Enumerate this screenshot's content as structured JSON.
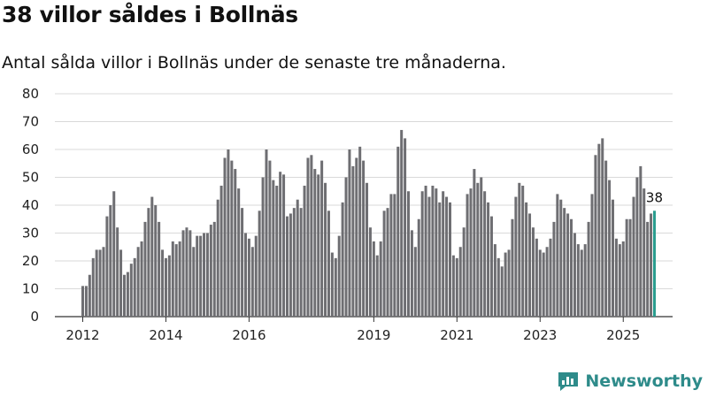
{
  "title": "38 villor såldes i Bollnäs",
  "subtitle": "Antal sålda villor i Bollnäs under de senaste tre månaderna.",
  "brand": {
    "name": "Newsworthy",
    "icon": "newsworthy-logo-icon",
    "color": "#2e8b8a"
  },
  "chart_data": {
    "type": "bar",
    "title": "38 villor såldes i Bollnäs",
    "subtitle": "Antal sålda villor i Bollnäs under de senaste tre månaderna.",
    "xlabel": "",
    "ylabel": "",
    "ylim": [
      0,
      80
    ],
    "yticks": [
      0,
      10,
      20,
      30,
      40,
      50,
      60,
      70,
      80
    ],
    "xtick_labels": [
      {
        "label": "2012",
        "at": "2012-01"
      },
      {
        "label": "2014",
        "at": "2014-01"
      },
      {
        "label": "2016",
        "at": "2016-01"
      },
      {
        "label": "2019",
        "at": "2019-01"
      },
      {
        "label": "2021",
        "at": "2021-01"
      },
      {
        "label": "2023",
        "at": "2023-01"
      },
      {
        "label": "2025",
        "at": "2025-01"
      }
    ],
    "grid": "horizontal",
    "bar_color": "#6e6e72",
    "highlight_color": "#2a9d8f",
    "highlight_label": "38",
    "start_month": "2012-01",
    "values": [
      11,
      11,
      15,
      21,
      24,
      24,
      25,
      36,
      40,
      45,
      32,
      24,
      15,
      16,
      19,
      21,
      25,
      27,
      34,
      39,
      43,
      40,
      34,
      24,
      21,
      22,
      27,
      26,
      27,
      31,
      32,
      31,
      25,
      29,
      29,
      30,
      30,
      33,
      34,
      42,
      47,
      57,
      60,
      56,
      53,
      46,
      39,
      30,
      28,
      25,
      29,
      38,
      50,
      60,
      56,
      49,
      47,
      52,
      51,
      36,
      37,
      39,
      42,
      39,
      47,
      57,
      58,
      53,
      51,
      56,
      48,
      38,
      23,
      21,
      29,
      41,
      50,
      60,
      54,
      57,
      61,
      56,
      48,
      32,
      27,
      22,
      27,
      38,
      39,
      44,
      44,
      61,
      67,
      64,
      45,
      31,
      25,
      35,
      45,
      47,
      43,
      47,
      46,
      41,
      45,
      43,
      41,
      22,
      21,
      25,
      32,
      44,
      46,
      53,
      48,
      50,
      45,
      41,
      36,
      26,
      21,
      18,
      23,
      24,
      35,
      43,
      48,
      47,
      41,
      37,
      32,
      28,
      24,
      23,
      25,
      28,
      34,
      44,
      42,
      39,
      37,
      35,
      30,
      26,
      24,
      26,
      34,
      44,
      58,
      62,
      64,
      56,
      49,
      42,
      28,
      26,
      27,
      35,
      35,
      43,
      50,
      54,
      46,
      34,
      37,
      38
    ]
  }
}
